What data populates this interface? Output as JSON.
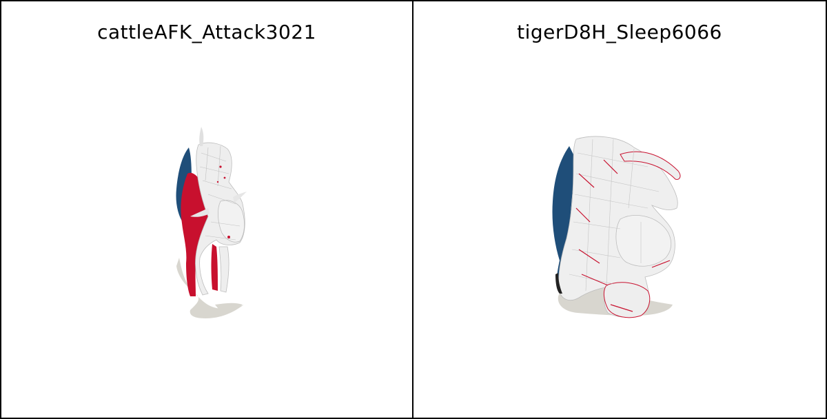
{
  "panels": [
    {
      "title": "cattleAFK_Attack3021"
    },
    {
      "title": "tigerD8H_Sleep6066"
    }
  ],
  "colors": {
    "border": "#000000",
    "background": "#ffffff",
    "shadow": "#d8d6cf",
    "mesh_red": "#c8102e",
    "mesh_blue": "#1f4e79",
    "mesh_cyan": "#29b6e8",
    "mesh_green": "#5faa6a",
    "wireframe": "#e8e8e8"
  }
}
